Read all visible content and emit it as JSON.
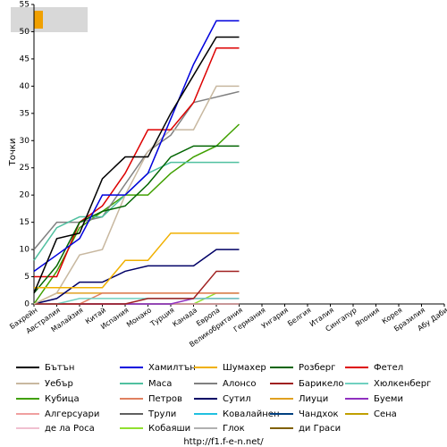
{
  "chart_data": {
    "type": "line",
    "y_label": "Точки",
    "footer": "http://f1.f-e-n.net/",
    "categories": [
      "Бахрейн",
      "Австралия",
      "Малайзия",
      "Китай",
      "Испания",
      "Монако",
      "Турция",
      "Канада",
      "Европа",
      "Великобритания",
      "Германия",
      "Унгария",
      "Белгия",
      "Италия",
      "Сингапур",
      "Япония",
      "Корея",
      "Бразилия",
      "Абу Даби"
    ],
    "ylim": [
      0,
      55
    ],
    "yticks": [
      0,
      5,
      10,
      15,
      20,
      25,
      30,
      35,
      40,
      45,
      50,
      55
    ],
    "series": [
      {
        "name": "Бътън",
        "color": "#000000",
        "values": [
          2,
          12,
          13,
          23,
          27,
          27,
          35,
          42,
          49,
          49,
          null,
          null,
          null,
          null,
          null,
          null,
          null,
          null,
          null
        ]
      },
      {
        "name": "Хамилтън",
        "color": "#0000dd",
        "values": [
          6,
          9,
          12,
          20,
          20,
          24,
          34,
          44,
          52,
          52,
          null,
          null,
          null,
          null,
          null,
          null,
          null,
          null,
          null
        ]
      },
      {
        "name": "Шумахер",
        "color": "#f0b000",
        "values": [
          3,
          3,
          3,
          3,
          8,
          8,
          13,
          13,
          13,
          13,
          null,
          null,
          null,
          null,
          null,
          null,
          null,
          null,
          null
        ]
      },
      {
        "name": "Розберг",
        "color": "#006400",
        "values": [
          2,
          7,
          15,
          17,
          18,
          22,
          27,
          29,
          29,
          29,
          null,
          null,
          null,
          null,
          null,
          null,
          null,
          null,
          null
        ]
      },
      {
        "name": "Фетел",
        "color": "#dd0000",
        "values": [
          5,
          5,
          15,
          18,
          24,
          32,
          32,
          37,
          47,
          47,
          null,
          null,
          null,
          null,
          null,
          null,
          null,
          null,
          null
        ]
      },
      {
        "name": "Уебър",
        "color": "#c8b8a0",
        "values": [
          0,
          2,
          9,
          10,
          20,
          28,
          32,
          32,
          40,
          40,
          null,
          null,
          null,
          null,
          null,
          null,
          null,
          null,
          null
        ]
      },
      {
        "name": "Маса",
        "color": "#50c0a0",
        "values": [
          8,
          14,
          16,
          16,
          20,
          24,
          26,
          26,
          26,
          26,
          null,
          null,
          null,
          null,
          null,
          null,
          null,
          null,
          null
        ]
      },
      {
        "name": "Алонсо",
        "color": "#808080",
        "values": [
          10,
          15,
          15,
          16,
          22,
          28,
          31,
          37,
          38,
          39,
          null,
          null,
          null,
          null,
          null,
          null,
          null,
          null,
          null
        ]
      },
      {
        "name": "Барикело",
        "color": "#a02020",
        "values": [
          0,
          0,
          0,
          0,
          0,
          1,
          1,
          1,
          6,
          6,
          null,
          null,
          null,
          null,
          null,
          null,
          null,
          null,
          null
        ]
      },
      {
        "name": "Хюлкенберг",
        "color": "#70d0c0",
        "values": [
          0,
          0,
          1,
          1,
          1,
          1,
          1,
          1,
          1,
          1,
          null,
          null,
          null,
          null,
          null,
          null,
          null,
          null,
          null
        ]
      },
      {
        "name": "Кубица",
        "color": "#40a000",
        "values": [
          0,
          6,
          14,
          17,
          20,
          20,
          24,
          27,
          29,
          33,
          null,
          null,
          null,
          null,
          null,
          null,
          null,
          null,
          null
        ]
      },
      {
        "name": "Петров",
        "color": "#e08060",
        "values": [
          0,
          0,
          0,
          2,
          2,
          2,
          2,
          2,
          2,
          2,
          null,
          null,
          null,
          null,
          null,
          null,
          null,
          null,
          null
        ]
      },
      {
        "name": "Сутил",
        "color": "#000066",
        "values": [
          0,
          1,
          4,
          4,
          6,
          7,
          7,
          7,
          10,
          10,
          null,
          null,
          null,
          null,
          null,
          null,
          null,
          null,
          null
        ]
      },
      {
        "name": "Лиуци",
        "color": "#e0a020",
        "values": [
          0,
          2,
          2,
          2,
          2,
          2,
          2,
          2,
          2,
          2,
          null,
          null,
          null,
          null,
          null,
          null,
          null,
          null,
          null
        ]
      },
      {
        "name": "Буеми",
        "color": "#9030c0",
        "values": [
          0,
          0,
          0,
          0,
          0,
          0,
          0,
          1,
          1,
          1,
          null,
          null,
          null,
          null,
          null,
          null,
          null,
          null,
          null
        ]
      },
      {
        "name": "Алгерсуари",
        "color": "#f0a0a0",
        "values": [
          0,
          0,
          0,
          0,
          0,
          0,
          0,
          0,
          0,
          0,
          null,
          null,
          null,
          null,
          null,
          null,
          null,
          null,
          null
        ]
      },
      {
        "name": "Трули",
        "color": "#606060",
        "values": [
          0,
          0,
          0,
          0,
          0,
          0,
          0,
          0,
          0,
          0,
          null,
          null,
          null,
          null,
          null,
          null,
          null,
          null,
          null
        ]
      },
      {
        "name": "Ковалайнен",
        "color": "#20c0e0",
        "values": [
          0,
          0,
          0,
          0,
          0,
          0,
          0,
          0,
          0,
          0,
          null,
          null,
          null,
          null,
          null,
          null,
          null,
          null,
          null
        ]
      },
      {
        "name": "Чандхок",
        "color": "#004080",
        "values": [
          0,
          0,
          0,
          0,
          0,
          0,
          0,
          0,
          0,
          0,
          null,
          null,
          null,
          null,
          null,
          null,
          null,
          null,
          null
        ]
      },
      {
        "name": "Сена",
        "color": "#c0a000",
        "values": [
          0,
          0,
          0,
          0,
          0,
          0,
          0,
          0,
          0,
          0,
          null,
          null,
          null,
          null,
          null,
          null,
          null,
          null,
          null
        ]
      },
      {
        "name": "де ла Роса",
        "color": "#f0c0d0",
        "values": [
          0,
          0,
          0,
          0,
          0,
          0,
          0,
          0,
          0,
          0,
          null,
          null,
          null,
          null,
          null,
          null,
          null,
          null,
          null
        ]
      },
      {
        "name": "Кобаяши",
        "color": "#90e030",
        "values": [
          0,
          0,
          0,
          0,
          0,
          0,
          0,
          0,
          2,
          2,
          null,
          null,
          null,
          null,
          null,
          null,
          null,
          null,
          null
        ]
      },
      {
        "name": "Глок",
        "color": "#b0b0b0",
        "values": [
          0,
          0,
          0,
          0,
          0,
          0,
          0,
          0,
          0,
          0,
          null,
          null,
          null,
          null,
          null,
          null,
          null,
          null,
          null
        ]
      },
      {
        "name": "ди Граси",
        "color": "#806000",
        "values": [
          0,
          0,
          0,
          0,
          0,
          0,
          0,
          0,
          0,
          0,
          null,
          null,
          null,
          null,
          null,
          null,
          null,
          null,
          null
        ]
      }
    ]
  }
}
